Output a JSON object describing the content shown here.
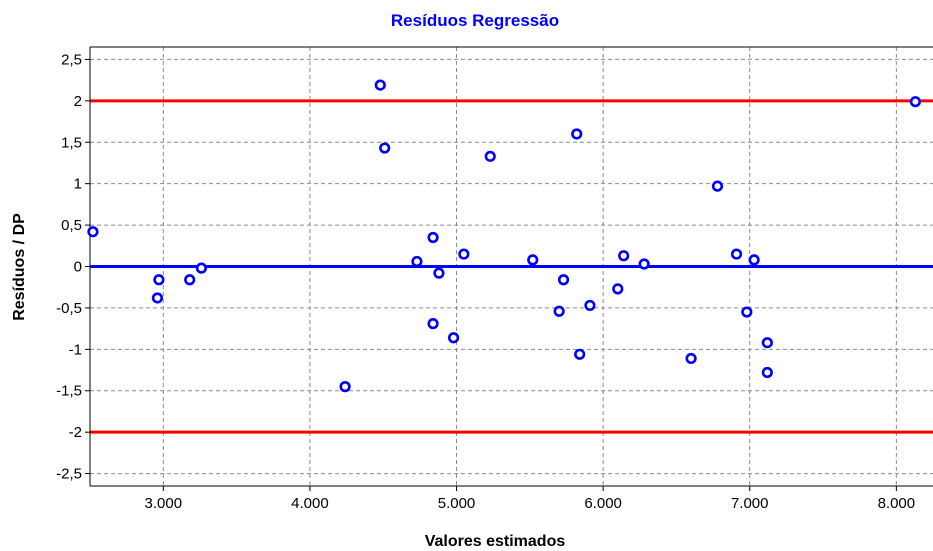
{
  "chart_data": {
    "type": "scatter",
    "title": "Resíduos Regressão",
    "xlabel": "Valores estimados",
    "ylabel": "Resíduos / DP",
    "xlim": [
      2500,
      8250
    ],
    "ylim": [
      -2.65,
      2.65
    ],
    "xticks": [
      {
        "value": 3000,
        "label": "3.000"
      },
      {
        "value": 4000,
        "label": "4.000"
      },
      {
        "value": 5000,
        "label": "5.000"
      },
      {
        "value": 6000,
        "label": "6.000"
      },
      {
        "value": 7000,
        "label": "7.000"
      },
      {
        "value": 8000,
        "label": "8.000"
      }
    ],
    "yticks": [
      {
        "value": 2.5,
        "label": "2,5"
      },
      {
        "value": 2,
        "label": "2"
      },
      {
        "value": 1.5,
        "label": "1,5"
      },
      {
        "value": 1,
        "label": "1"
      },
      {
        "value": 0.5,
        "label": "0,5"
      },
      {
        "value": 0,
        "label": "0"
      },
      {
        "value": -0.5,
        "label": "-0,5"
      },
      {
        "value": -1,
        "label": "-1"
      },
      {
        "value": -1.5,
        "label": "-1,5"
      },
      {
        "value": -2,
        "label": "-2"
      },
      {
        "value": -2.5,
        "label": "-2,5"
      }
    ],
    "grid": true,
    "reference_lines": [
      {
        "y": 2,
        "color": "#ff0000"
      },
      {
        "y": 0,
        "color": "#0000ff"
      },
      {
        "y": -2,
        "color": "#ff0000"
      }
    ],
    "points": [
      {
        "x": 2520,
        "y": 0.42
      },
      {
        "x": 2960,
        "y": -0.38
      },
      {
        "x": 2970,
        "y": -0.16
      },
      {
        "x": 3180,
        "y": -0.16
      },
      {
        "x": 3260,
        "y": -0.02
      },
      {
        "x": 4240,
        "y": -1.45
      },
      {
        "x": 4480,
        "y": 2.19
      },
      {
        "x": 4510,
        "y": 1.43
      },
      {
        "x": 4730,
        "y": 0.06
      },
      {
        "x": 4840,
        "y": 0.35
      },
      {
        "x": 4840,
        "y": -0.69
      },
      {
        "x": 4880,
        "y": -0.08
      },
      {
        "x": 4980,
        "y": -0.86
      },
      {
        "x": 5050,
        "y": 0.15
      },
      {
        "x": 5230,
        "y": 1.33
      },
      {
        "x": 5520,
        "y": 0.08
      },
      {
        "x": 5700,
        "y": -0.54
      },
      {
        "x": 5730,
        "y": -0.16
      },
      {
        "x": 5820,
        "y": 1.6
      },
      {
        "x": 5840,
        "y": -1.06
      },
      {
        "x": 5910,
        "y": -0.47
      },
      {
        "x": 6100,
        "y": -0.27
      },
      {
        "x": 6140,
        "y": 0.13
      },
      {
        "x": 6280,
        "y": 0.03
      },
      {
        "x": 6600,
        "y": -1.11
      },
      {
        "x": 6780,
        "y": 0.97
      },
      {
        "x": 6910,
        "y": 0.15
      },
      {
        "x": 6980,
        "y": -0.55
      },
      {
        "x": 7030,
        "y": 0.08
      },
      {
        "x": 7120,
        "y": -0.92
      },
      {
        "x": 7120,
        "y": -1.28
      },
      {
        "x": 8130,
        "y": 1.99
      }
    ],
    "colors": {
      "title": "#0000ff",
      "marker": "#0000ff",
      "grid": "#8c8c8c",
      "axis": "#000000",
      "limit_line": "#ff0000",
      "zero_line": "#0000ff"
    }
  }
}
